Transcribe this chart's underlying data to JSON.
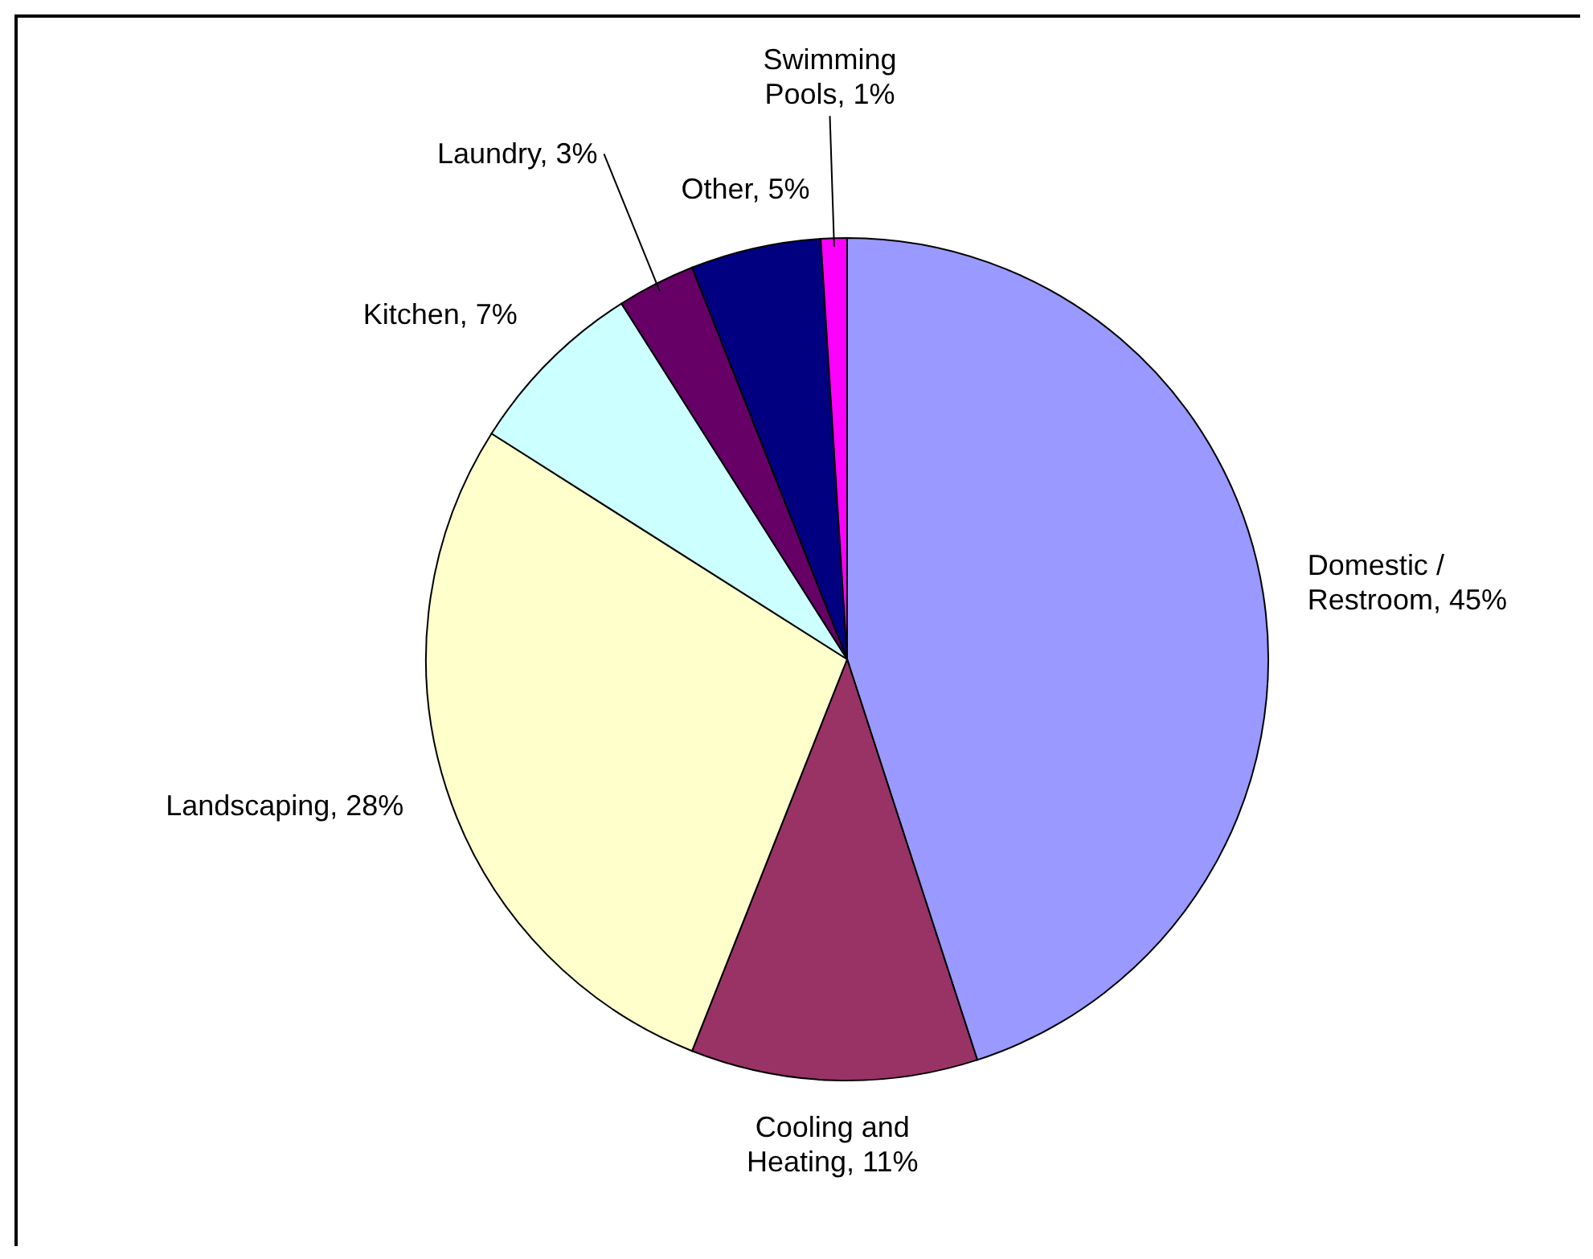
{
  "chart_data": {
    "type": "pie",
    "categories": [
      "Domestic / Restroom, 45%",
      "Cooling and Heating, 11%",
      "Landscaping, 28%",
      "Kitchen, 7%",
      "Laundry, 3%",
      "Other, 5%",
      "Swimming Pools, 1%"
    ],
    "values": [
      45,
      11,
      28,
      7,
      3,
      5,
      1
    ],
    "colors": [
      "#9999ff",
      "#993366",
      "#ffffcc",
      "#ccffff",
      "#660066",
      "#000080",
      "#ff00ff"
    ]
  }
}
